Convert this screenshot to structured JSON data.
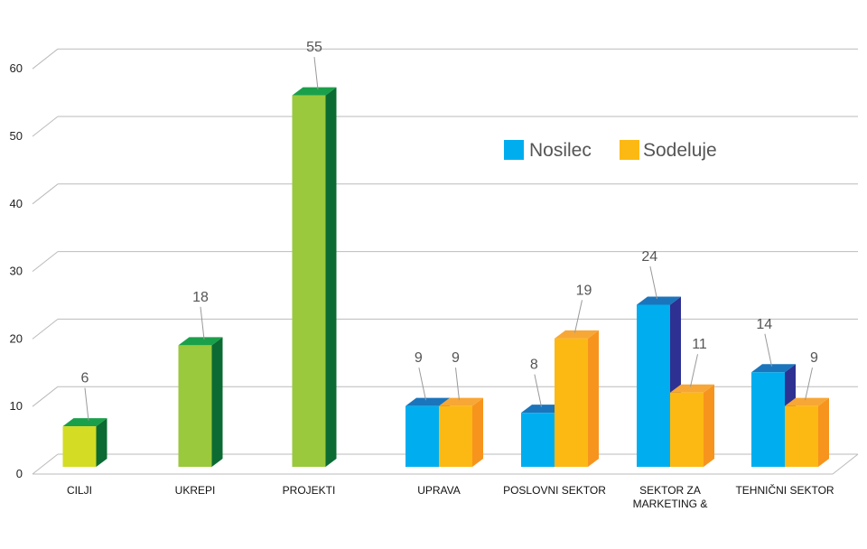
{
  "chart_data": {
    "type": "bar",
    "style": "3d-clustered",
    "categories": [
      "CILJI",
      "UKREPI",
      "PROJEKTI",
      "UPRAVA",
      "POSLOVNI SEKTOR",
      "SEKTOR ZA MARKETING &",
      "TEHNIČNI SEKTOR"
    ],
    "category_lines": [
      [
        "CILJI"
      ],
      [
        "UKREPI"
      ],
      [
        "PROJEKTI"
      ],
      [
        "UPRAVA"
      ],
      [
        "POSLOVNI SEKTOR"
      ],
      [
        "SEKTOR ZA",
        "MARKETING    &"
      ],
      [
        "TEHNIČNI SEKTOR"
      ]
    ],
    "single": {
      "values": [
        6,
        18,
        55,
        null,
        null,
        null,
        null
      ],
      "colors": [
        "#d4dc23",
        "#9ac93d",
        "#9ac93d"
      ],
      "top_colors": [
        "#1aa04a",
        "#1aa04a",
        "#1aa04a"
      ],
      "side_colors": [
        "#0b6b32",
        "#0b6b32",
        "#0b6b32"
      ]
    },
    "series": [
      {
        "name": "Nosilec",
        "values": [
          null,
          null,
          null,
          9,
          8,
          24,
          14
        ],
        "color": "#00aeef",
        "top_color": "#1b75bc",
        "side_color": "#2e3192"
      },
      {
        "name": "Sodeluje",
        "values": [
          null,
          null,
          null,
          9,
          19,
          11,
          9
        ],
        "color": "#fdb913",
        "top_color": "#f7a735",
        "side_color": "#f7941d"
      }
    ],
    "yticks": [
      0,
      10,
      20,
      30,
      40,
      50,
      60
    ],
    "ylim": [
      0,
      60
    ],
    "grid": true,
    "legend": "top-right",
    "gridline_color": "#bbbbbb"
  }
}
